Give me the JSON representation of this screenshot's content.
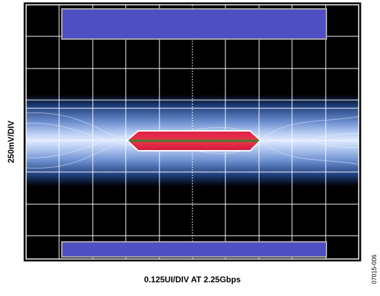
{
  "y_label": "250mV/DIV",
  "x_label": "0.125UI/DIV AT 2.25Gbps",
  "figure_id": "07015-006"
}
